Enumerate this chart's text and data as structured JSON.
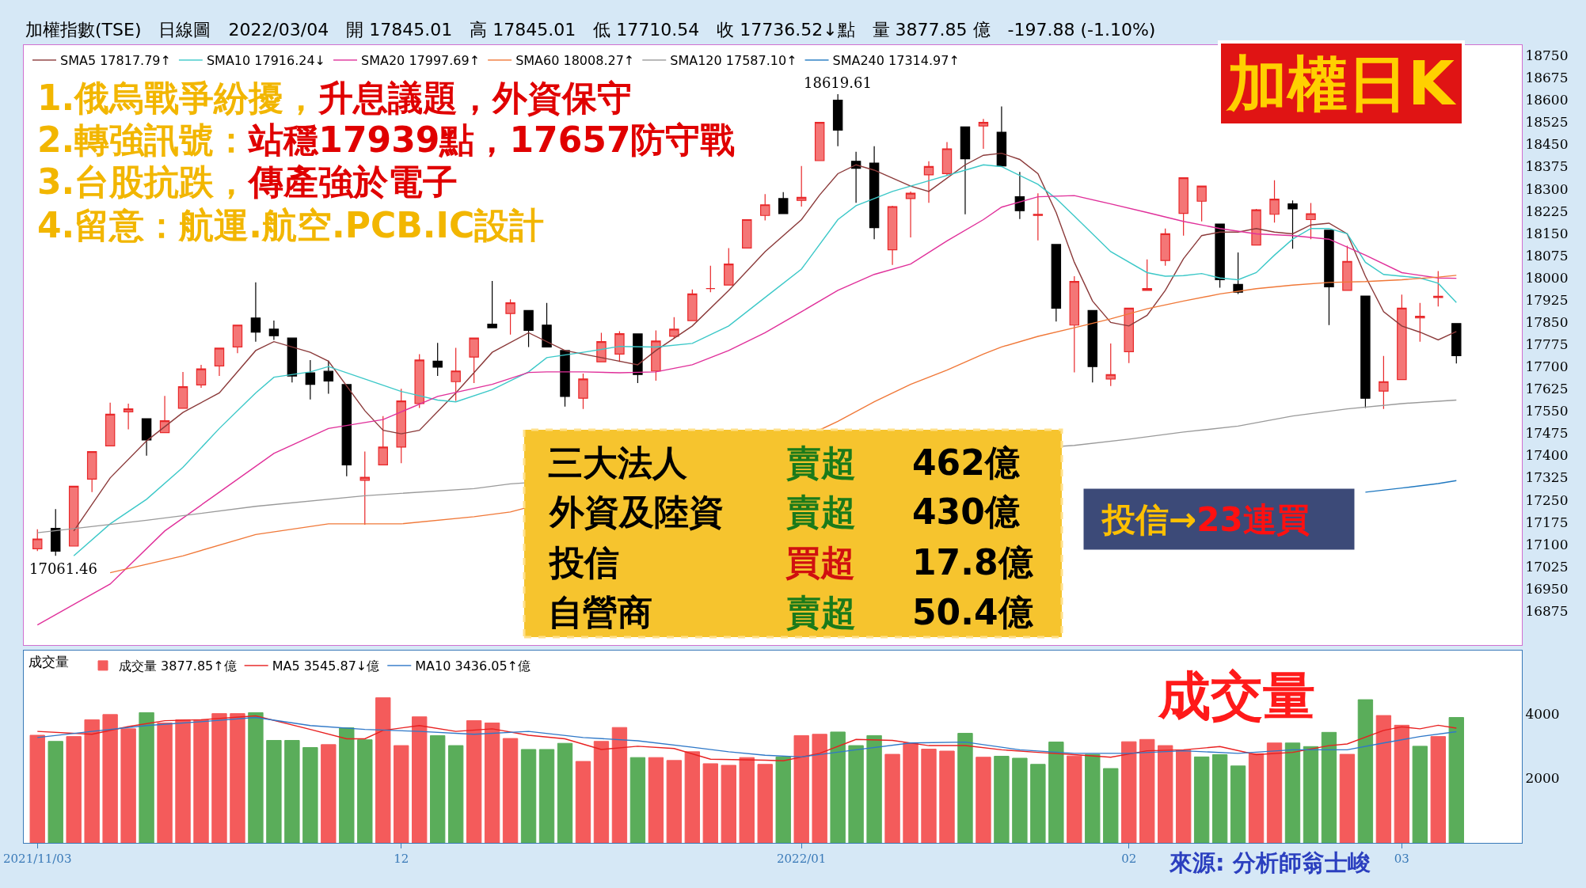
{
  "chart_data": [
    {
      "type": "candlestick",
      "title": "加權指數(TSE)　日線圖　2022/03/04　開 17845.01　高 17845.01　低 17710.54　收 17736.52↓點　量 3877.85 億　-197.88 (-1.10%)",
      "categories": [
        "2021/11/03",
        null,
        null,
        null,
        null,
        null,
        null,
        null,
        null,
        null,
        null,
        null,
        null,
        null,
        null,
        null,
        null,
        null,
        null,
        null,
        "12",
        null,
        null,
        null,
        null,
        null,
        null,
        null,
        null,
        null,
        null,
        null,
        null,
        null,
        null,
        null,
        null,
        null,
        null,
        null,
        null,
        null,
        "2022/01",
        null,
        null,
        null,
        null,
        null,
        null,
        null,
        null,
        null,
        null,
        null,
        null,
        null,
        null,
        null,
        null,
        null,
        "02",
        null,
        null,
        null,
        null,
        null,
        null,
        null,
        null,
        null,
        null,
        null,
        null,
        null,
        null,
        "03",
        null,
        null,
        null
      ],
      "ohlc": [
        [
          17085,
          17151,
          17077,
          17118
        ],
        [
          17154,
          17219,
          17061.46,
          17077
        ],
        [
          17094,
          17296,
          17094,
          17296
        ],
        [
          17320,
          17413,
          17276,
          17413
        ],
        [
          17432,
          17578,
          17432,
          17539
        ],
        [
          17547,
          17575,
          17488,
          17557
        ],
        [
          17524,
          17524,
          17399,
          17452
        ],
        [
          17477,
          17601,
          17477,
          17517
        ],
        [
          17559,
          17682,
          17559,
          17632
        ],
        [
          17638,
          17706,
          17628,
          17692
        ],
        [
          17702,
          17762,
          17668,
          17762
        ],
        [
          17766,
          17840,
          17745,
          17840
        ],
        [
          17864,
          17984,
          17784,
          17816
        ],
        [
          17826,
          17855,
          17790,
          17804
        ],
        [
          17796,
          17796,
          17646,
          17668
        ],
        [
          17679,
          17722,
          17589,
          17640
        ],
        [
          17684,
          17720,
          17608,
          17651
        ],
        [
          17639,
          17639,
          17330,
          17368
        ],
        [
          17316,
          17413,
          17166,
          17326
        ],
        [
          17368,
          17533,
          17368,
          17428
        ],
        [
          17428,
          17625,
          17374,
          17584
        ],
        [
          17575,
          17742,
          17560,
          17722
        ],
        [
          17718,
          17780,
          17668,
          17698
        ],
        [
          17649,
          17763,
          17584,
          17685
        ],
        [
          17732,
          17796,
          17644,
          17796
        ],
        [
          17843,
          17989,
          17831,
          17831
        ],
        [
          17879,
          17927,
          17808,
          17915
        ],
        [
          17889,
          17889,
          17766,
          17822
        ],
        [
          17840,
          17915,
          17766,
          17766
        ],
        [
          17754,
          17754,
          17565,
          17599
        ],
        [
          17593,
          17676,
          17557,
          17658
        ],
        [
          17716,
          17814,
          17716,
          17784
        ],
        [
          17742,
          17819,
          17716,
          17811
        ],
        [
          17810,
          17810,
          17644,
          17673
        ],
        [
          17685,
          17822,
          17652,
          17786
        ],
        [
          17802,
          17867,
          17796,
          17826
        ],
        [
          17855,
          17960,
          17855,
          17945
        ],
        [
          17963,
          18040,
          17951,
          17963
        ],
        [
          17975,
          18100,
          17975,
          18046
        ],
        [
          18100,
          18196,
          18100,
          18196
        ],
        [
          18210,
          18282,
          18193,
          18246
        ],
        [
          18267,
          18289,
          18216,
          18216
        ],
        [
          18261,
          18377,
          18240,
          18271
        ],
        [
          18395,
          18524,
          18395,
          18524
        ],
        [
          18599,
          18619.61,
          18444,
          18498
        ],
        [
          18393,
          18425,
          18253,
          18369
        ],
        [
          18387,
          18444,
          18130,
          18169
        ],
        [
          18094,
          18243,
          18043,
          18240
        ],
        [
          18267,
          18291,
          18136,
          18285
        ],
        [
          18347,
          18393,
          18253,
          18375
        ],
        [
          18351,
          18458,
          18345,
          18435
        ],
        [
          18509,
          18509,
          18214,
          18401
        ],
        [
          18512,
          18536,
          18435,
          18524
        ],
        [
          18491,
          18578,
          18377,
          18377
        ],
        [
          18273,
          18357,
          18198,
          18226
        ],
        [
          18210,
          18285,
          18126,
          18214
        ],
        [
          18112,
          18112,
          17852,
          17897
        ],
        [
          17840,
          18005,
          17680,
          17987
        ],
        [
          17889,
          17889,
          17646,
          17700
        ],
        [
          17658,
          17778,
          17634,
          17673
        ],
        [
          17750,
          17897,
          17712,
          17897
        ],
        [
          17957,
          18062,
          17957,
          17963
        ],
        [
          18058,
          18166,
          18040,
          18148
        ],
        [
          18217,
          18337,
          18142,
          18337
        ],
        [
          18258,
          18309,
          18190,
          18309
        ],
        [
          18181,
          18181,
          17966,
          17993
        ],
        [
          17977,
          18085,
          17945,
          17951
        ],
        [
          18110,
          18232,
          18110,
          18229
        ],
        [
          18214,
          18329,
          18186,
          18265
        ],
        [
          18249,
          18261,
          18098,
          18232
        ],
        [
          18196,
          18252,
          18130,
          18216
        ],
        [
          18160,
          18160,
          17840,
          17969
        ],
        [
          17957,
          18108,
          17957,
          18055
        ],
        [
          17938,
          17938,
          17560,
          17593
        ],
        [
          17617,
          17736,
          17557,
          17649
        ],
        [
          17656,
          17943,
          17656,
          17897
        ],
        [
          17864,
          17915,
          17784,
          17870
        ],
        [
          17933,
          18022,
          17903,
          17937
        ],
        [
          17845.01,
          17845.01,
          17710.54,
          17736.52
        ]
      ],
      "series": [
        {
          "type": "line",
          "name": "SMA5 17817.79↑",
          "color": "#8b3a3a",
          "values": [
            null,
            null,
            17145,
            null,
            17324,
            null,
            17449,
            null,
            17545,
            null,
            17611,
            null,
            17754,
            17784,
            null,
            17748,
            17718,
            null,
            17551,
            17485,
            17473,
            17485,
            null,
            17611,
            null,
            17748,
            null,
            17814,
            null,
            17754,
            null,
            17730,
            null,
            17706,
            17754,
            null,
            17837,
            null,
            17957,
            null,
            18088,
            null,
            18196,
            18279,
            18351,
            18381,
            18363,
            null,
            18309,
            18291,
            null,
            18381,
            18413,
            18420,
            18399,
            18351,
            18220,
            18052,
            17921,
            17849,
            17837,
            17873,
            17957,
            18064,
            18142,
            18154,
            18154,
            18166,
            18154,
            18148,
            18178,
            18184,
            18148,
            18005,
            17885,
            17837,
            17816,
            17790,
            17818
          ]
        },
        {
          "type": "line",
          "name": "SMA10 17916.24↓",
          "color": "#3cc8c8",
          "values": [
            null,
            null,
            17061,
            null,
            17169,
            null,
            17252,
            null,
            17360,
            null,
            17491,
            null,
            17611,
            17664,
            null,
            17682,
            17700,
            null,
            17658,
            null,
            17616,
            null,
            17587,
            17581,
            null,
            17622,
            null,
            17682,
            17730,
            null,
            17748,
            null,
            17768,
            null,
            17766,
            null,
            17778,
            null,
            17837,
            null,
            17933,
            null,
            18029,
            null,
            18196,
            18243,
            null,
            18291,
            null,
            18327,
            null,
            18363,
            18381,
            18375,
            null,
            18315,
            18267,
            18208,
            null,
            18088,
            null,
            18017,
            18005,
            18007,
            18014,
            17999,
            17993,
            18017,
            18076,
            18130,
            18166,
            18166,
            18148,
            18052,
            18011,
            18005,
            17999,
            17981,
            17916
          ]
        },
        {
          "type": "line",
          "name": "SMA20 17997.69↑",
          "color": "#e0309a",
          "values": [
            16828,
            null,
            null,
            null,
            16966,
            null,
            null,
            17145,
            null,
            null,
            17276,
            null,
            null,
            17407,
            null,
            null,
            17491,
            null,
            null,
            17521,
            null,
            null,
            17599,
            null,
            null,
            17640,
            null,
            17680,
            17682,
            null,
            17682,
            null,
            17679,
            null,
            17682,
            null,
            17706,
            null,
            17754,
            null,
            17814,
            null,
            17885,
            null,
            17957,
            null,
            18011,
            null,
            18046,
            null,
            18124,
            null,
            18196,
            18238,
            null,
            18273,
            null,
            18277,
            null,
            18249,
            null,
            18220,
            null,
            18190,
            null,
            18166,
            null,
            18148,
            null,
            18142,
            null,
            18130,
            null,
            18076,
            null,
            18017,
            null,
            17999,
            17998
          ]
        },
        {
          "type": "line",
          "name": "SMA60 18008.27↑",
          "color": "#f07838",
          "values": [
            null,
            null,
            null,
            null,
            17004,
            null,
            null,
            null,
            17061,
            null,
            null,
            null,
            17133,
            null,
            null,
            null,
            17169,
            null,
            null,
            null,
            17169,
            null,
            null,
            null,
            17193,
            null,
            17209,
            null,
            null,
            null,
            null,
            null,
            null,
            null,
            null,
            null,
            null,
            null,
            null,
            null,
            null,
            null,
            null,
            17486,
            17515,
            null,
            17581,
            null,
            17640,
            null,
            17688,
            null,
            17742,
            17766,
            null,
            17802,
            null,
            17831,
            null,
            17861,
            null,
            17895,
            null,
            17921,
            null,
            17945,
            null,
            17963,
            null,
            17975,
            null,
            17984,
            null,
            17987,
            null,
            17993,
            null,
            18002,
            18008
          ]
        },
        {
          "type": "line",
          "name": "SMA120 17587.10↑",
          "color": "#9a9a9a",
          "values": [
            17139,
            null,
            null,
            null,
            null,
            null,
            17181,
            null,
            null,
            null,
            null,
            null,
            17228,
            null,
            null,
            null,
            null,
            null,
            17264,
            null,
            null,
            null,
            null,
            null,
            17288,
            null,
            17304,
            null,
            null,
            null,
            null,
            null,
            null,
            null,
            null,
            null,
            null,
            null,
            null,
            null,
            null,
            null,
            null,
            null,
            null,
            null,
            null,
            null,
            null,
            null,
            null,
            null,
            null,
            null,
            null,
            null,
            null,
            17434,
            null,
            null,
            17455,
            null,
            null,
            17479,
            null,
            null,
            17499,
            null,
            null,
            17533,
            null,
            null,
            17557,
            null,
            null,
            17575,
            null,
            null,
            17587
          ]
        },
        {
          "type": "line",
          "name": "SMA240 17314.97↑",
          "color": "#1f78c0",
          "values": [
            null,
            null,
            null,
            null,
            null,
            null,
            null,
            null,
            null,
            null,
            null,
            null,
            null,
            null,
            null,
            null,
            null,
            null,
            null,
            null,
            null,
            null,
            null,
            null,
            null,
            null,
            null,
            null,
            null,
            null,
            null,
            null,
            null,
            null,
            null,
            null,
            null,
            null,
            null,
            null,
            null,
            null,
            null,
            null,
            null,
            null,
            null,
            null,
            null,
            null,
            null,
            null,
            null,
            null,
            null,
            null,
            null,
            null,
            null,
            null,
            null,
            null,
            null,
            null,
            null,
            null,
            null,
            null,
            null,
            null,
            null,
            null,
            null,
            17276,
            null,
            17290,
            null,
            17305,
            17315
          ]
        }
      ],
      "ylim": [
        16760,
        18785
      ],
      "yticks": [
        16875,
        16950,
        17025,
        17100,
        17175,
        17250,
        17325,
        17400,
        17475,
        17550,
        17625,
        17700,
        17775,
        17850,
        17925,
        18000,
        18075,
        18150,
        18225,
        18300,
        18375,
        18450,
        18525,
        18600,
        18675,
        18750
      ],
      "tick_labels": "y",
      "legend": "top left",
      "annotations": [
        "1.俄烏戰爭紛擾，",
        "升息議題，外資保守",
        "2.轉強訊號：",
        "站穩17939點，17657防守戰",
        "3.台股抗跌，",
        "傳產強於電子",
        "4.留意：航運.航空.PCB.IC設計",
        "加權日K",
        "三大法人",
        "賣超",
        "462億",
        "外資及陸資",
        "賣超",
        "430億",
        "投信",
        "買超",
        "17.8億",
        "自營商",
        "賣超",
        "50.4億",
        "投信→",
        "23連買",
        {
          "text": "18619.61",
          "y": 18619.61
        },
        "17061.46"
      ]
    },
    {
      "type": "bar",
      "title": "成交量",
      "categories": [
        "2021/11/03",
        null,
        null,
        null,
        null,
        null,
        null,
        null,
        null,
        null,
        null,
        null,
        null,
        null,
        null,
        null,
        null,
        null,
        null,
        null,
        "12",
        null,
        null,
        null,
        null,
        null,
        null,
        null,
        null,
        null,
        null,
        null,
        null,
        null,
        null,
        null,
        null,
        null,
        null,
        null,
        null,
        null,
        "2022/01",
        null,
        null,
        null,
        null,
        null,
        null,
        null,
        null,
        null,
        null,
        null,
        null,
        null,
        null,
        null,
        null,
        null,
        "02",
        null,
        null,
        null,
        null,
        null,
        null,
        null,
        null,
        null,
        null,
        null,
        null,
        null,
        null,
        "03",
        null,
        null,
        null
      ],
      "series": [
        {
          "type": "bar",
          "name": "成交量 3877.85↑億",
          "values": [
            3330,
            3140,
            3290,
            3810,
            3970,
            3530,
            4030,
            3710,
            3810,
            3810,
            4000,
            4000,
            4030,
            3170,
            3170,
            2950,
            3040,
            3560,
            3190,
            4490,
            3010,
            3900,
            3320,
            3010,
            3780,
            3710,
            3230,
            2890,
            2890,
            3080,
            2520,
            3140,
            3570,
            2640,
            2640,
            2550,
            2820,
            2450,
            2400,
            2640,
            2430,
            2660,
            3320,
            3360,
            3430,
            3010,
            3320,
            2740,
            3090,
            2900,
            2840,
            3390,
            2650,
            2680,
            2620,
            2430,
            3120,
            2690,
            2740,
            2300,
            3130,
            3200,
            3010,
            2870,
            2660,
            2730,
            2380,
            2760,
            3090,
            3090,
            2980,
            3420,
            2740,
            4430,
            3940,
            3640,
            2990,
            3290,
            3880
          ],
          "colors": [
            "#f45b5b",
            "#5aad5a",
            "#f45b5b",
            "#f45b5b",
            "#f45b5b",
            "#f45b5b",
            "#5aad5a",
            "#f45b5b",
            "#f45b5b",
            "#f45b5b",
            "#f45b5b",
            "#f45b5b",
            "#5aad5a",
            "#5aad5a",
            "#5aad5a",
            "#5aad5a",
            "#f45b5b",
            "#5aad5a",
            "#5aad5a",
            "#f45b5b",
            "#f45b5b",
            "#f45b5b",
            "#5aad5a",
            "#5aad5a",
            "#f45b5b",
            "#f45b5b",
            "#f45b5b",
            "#5aad5a",
            "#5aad5a",
            "#5aad5a",
            "#f45b5b",
            "#f45b5b",
            "#f45b5b",
            "#5aad5a",
            "#f45b5b",
            "#f45b5b",
            "#f45b5b",
            "#f45b5b",
            "#f45b5b",
            "#f45b5b",
            "#f45b5b",
            "#5aad5a",
            "#f45b5b",
            "#f45b5b",
            "#5aad5a",
            "#5aad5a",
            "#5aad5a",
            "#f45b5b",
            "#f45b5b",
            "#f45b5b",
            "#f45b5b",
            "#5aad5a",
            "#f45b5b",
            "#5aad5a",
            "#5aad5a",
            "#5aad5a",
            "#5aad5a",
            "#f45b5b",
            "#5aad5a",
            "#5aad5a",
            "#f45b5b",
            "#f45b5b",
            "#f45b5b",
            "#f45b5b",
            "#5aad5a",
            "#5aad5a",
            "#5aad5a",
            "#f45b5b",
            "#f45b5b",
            "#5aad5a",
            "#5aad5a",
            "#5aad5a",
            "#f45b5b",
            "#5aad5a",
            "#f45b5b",
            "#f45b5b",
            "#5aad5a",
            "#f45b5b",
            "#5aad5a"
          ]
        },
        {
          "type": "line",
          "name": "MA5 3545.87↓億",
          "color": "#e82020",
          "values": [
            3450,
            null,
            null,
            3360,
            null,
            3600,
            null,
            3780,
            null,
            3810,
            null,
            null,
            3930,
            null,
            null,
            3510,
            null,
            3220,
            3220,
            3480,
            null,
            3630,
            null,
            3450,
            null,
            3530,
            null,
            3330,
            null,
            3220,
            null,
            2890,
            null,
            2990,
            null,
            2920,
            null,
            2590,
            null,
            null,
            2560,
            2540,
            null,
            2770,
            null,
            3200,
            null,
            3170,
            null,
            3010,
            null,
            3010,
            null,
            2880,
            null,
            2800,
            null,
            2730,
            null,
            2650,
            null,
            2850,
            null,
            2880,
            null,
            2980,
            null,
            2730,
            null,
            2800,
            null,
            3010,
            3060,
            null,
            3480,
            3590,
            3530,
            3640,
            3550
          ]
        },
        {
          "type": "line",
          "name": "MA10 3436.05↑億",
          "color": "#2f78c8",
          "values": [
            3260,
            null,
            null,
            3450,
            null,
            null,
            3630,
            null,
            null,
            3750,
            null,
            null,
            3880,
            null,
            null,
            3630,
            null,
            null,
            3510,
            null,
            null,
            3450,
            null,
            null,
            3360,
            null,
            null,
            3450,
            null,
            null,
            3260,
            null,
            null,
            3160,
            null,
            null,
            2960,
            null,
            2820,
            null,
            2710,
            null,
            2660,
            null,
            null,
            2880,
            null,
            null,
            3090,
            null,
            null,
            3120,
            null,
            null,
            2880,
            null,
            null,
            2770,
            null,
            null,
            2770,
            null,
            null,
            2850,
            null,
            null,
            2770,
            null,
            null,
            2880,
            null,
            null,
            2880,
            null,
            3090,
            null,
            3290,
            null,
            3440
          ]
        }
      ],
      "ylim": [
        0,
        5950
      ],
      "yticks": [
        2000,
        4000
      ],
      "legend": "top left",
      "annotations": [
        "成交量",
        "來源: 分析師翁士峻"
      ]
    }
  ]
}
